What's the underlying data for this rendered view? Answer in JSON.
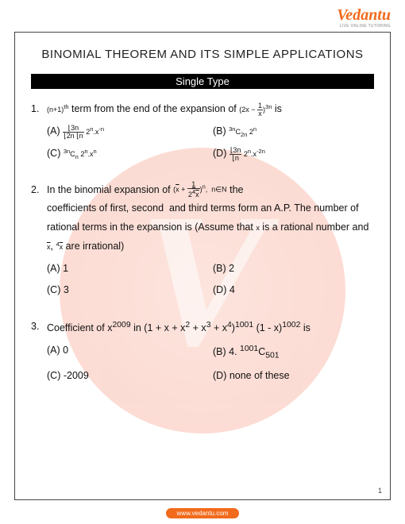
{
  "brand": {
    "name": "Vedantu",
    "tagline": "LIVE ONLINE TUTORING"
  },
  "title": "BINOMIAL THEOREM AND ITS SIMPLE APPLICATIONS",
  "section": "Single Type",
  "questions": [
    {
      "num": "1.",
      "prefix_math": "(n+1)ᵗʰ",
      "text1": " term from the end of the expansion of ",
      "mid_math": "(2x − 1/x)³ⁿ",
      "text2": " is",
      "options": {
        "A": "(A) ",
        "A_math": "⌊3n / (⌊2n ⌊n) · 2ⁿ·x⁻ⁿ",
        "B": "(B) ",
        "B_math": "³ⁿC₂ₙ 2ⁿ",
        "C": "(C) ",
        "C_math": "³ⁿCₙ 2ⁿ.xⁿ",
        "D": "(D) ",
        "D_math": "⌊3n/⌊n · 2ⁿ.x⁻²ⁿ"
      }
    },
    {
      "num": "2.",
      "text1": "In the binomial expansion of ",
      "mid_math": "(√x + 1/(2·⁴√x))ⁿ,  n∈N",
      "text2": " the",
      "body": "coefficients of first, second  and third terms form an A.P. The number of rational terms in the expansion is (Assume that x is a rational number and √x, ⁴√x are irrational)",
      "options": {
        "A": "(A) 1",
        "B": "(B) 2",
        "C": "(C) 3",
        "D": "(D) 4"
      }
    },
    {
      "num": "3.",
      "text1": "Coefficient of x²⁰⁰⁹ in (1 + x + x² + x³ + x⁴)¹⁰⁰¹ (1 - x)¹⁰⁰² is",
      "options": {
        "A": "(A) 0",
        "B": "(B) 4. ¹⁰⁰¹C₅₀₁",
        "C": "(C) -2009",
        "D": "(D) none of these"
      }
    }
  ],
  "page_number": "1",
  "footer_url": "www.vedantu.com",
  "colors": {
    "brand": "#f26a1b",
    "text": "#111111",
    "bar_bg": "#000000",
    "bar_fg": "#ffffff"
  }
}
